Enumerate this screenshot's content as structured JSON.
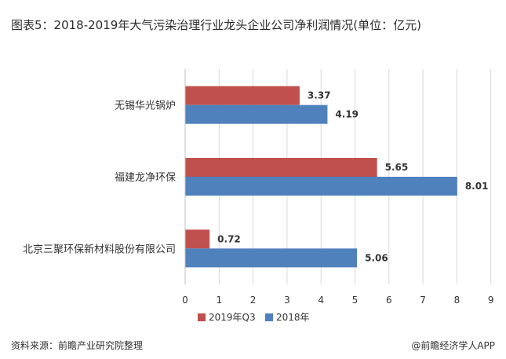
{
  "title": "图表5：2018-2019年大气污染治理行业龙头企业公司净利润情况(单位：亿元)",
  "source": "资料来源：前瞻产业研究院整理",
  "brand": "@前瞻经济学人APP",
  "colors": {
    "series1": "#c0504d",
    "series2": "#4f81bd",
    "grid": "#d9d9d9",
    "axis": "#bfbfbf"
  },
  "chart_data": {
    "type": "bar",
    "orientation": "horizontal",
    "categories": [
      "无锡华光锅炉",
      "福建龙净环保",
      "北京三聚环保新材料股份有限公司"
    ],
    "series": [
      {
        "name": "2019年Q3",
        "values": [
          3.37,
          5.65,
          0.72
        ]
      },
      {
        "name": "2018年",
        "values": [
          4.19,
          8.01,
          5.06
        ]
      }
    ],
    "xticks": [
      0,
      1,
      2,
      3,
      4,
      5,
      6,
      7,
      8,
      9
    ],
    "xlim": [
      0,
      9
    ],
    "grid": true,
    "legend_position": "bottom"
  }
}
